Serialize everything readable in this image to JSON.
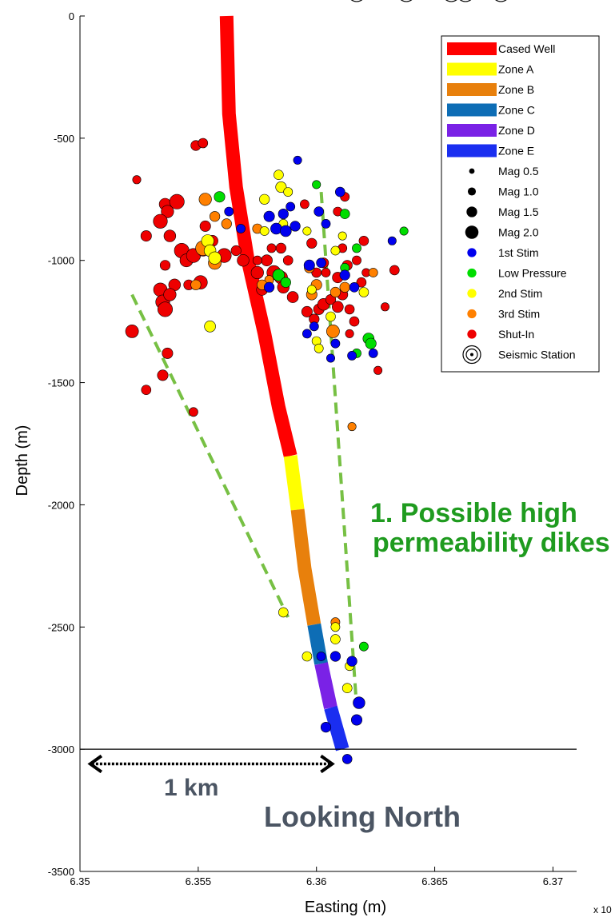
{
  "chart_data": {
    "type": "scatter",
    "xlabel": "Easting (m)",
    "ylabel": "Depth (m)",
    "x_exponent_label": "x 10",
    "xlim": [
      6.35,
      6.371
    ],
    "ylim": [
      -3500,
      0
    ],
    "x_ticks": [
      6.35,
      6.355,
      6.36,
      6.365,
      6.37
    ],
    "x_tick_labels": [
      "6.35",
      "6.355",
      "6.36",
      "6.365",
      "6.37"
    ],
    "y_ticks": [
      0,
      -500,
      -1000,
      -1500,
      -2000,
      -2500,
      -3000,
      -3500
    ],
    "y_tick_labels": [
      "0",
      "-500",
      "-1000",
      "-1500",
      "-2000",
      "-2500",
      "-3000",
      "-3500"
    ],
    "legend_position": "top-right",
    "colors": {
      "cased_well": "#ff0000",
      "zone_a": "#ffff00",
      "zone_b": "#e8800c",
      "zone_c": "#0d6db5",
      "zone_d": "#7a22e6",
      "zone_e": "#1a2ef0",
      "stim1": "#0000ee",
      "low_pressure": "#00dd00",
      "stim2": "#ffff00",
      "stim3": "#ff8000",
      "shut_in": "#ee0000",
      "dike_line": "#77c044"
    },
    "legend": [
      {
        "label": "Cased Well",
        "kind": "bar",
        "color_key": "cased_well"
      },
      {
        "label": "Zone A",
        "kind": "bar",
        "color_key": "zone_a"
      },
      {
        "label": "Zone B",
        "kind": "bar",
        "color_key": "zone_b"
      },
      {
        "label": "Zone C",
        "kind": "bar",
        "color_key": "zone_c"
      },
      {
        "label": "Zone D",
        "kind": "bar",
        "color_key": "zone_d"
      },
      {
        "label": "Zone E",
        "kind": "bar",
        "color_key": "zone_e"
      },
      {
        "label": "Mag 0.5",
        "kind": "dot",
        "mag": 0.5,
        "color": "#000000"
      },
      {
        "label": "Mag 1.0",
        "kind": "dot",
        "mag": 1.0,
        "color": "#000000"
      },
      {
        "label": "Mag 1.5",
        "kind": "dot",
        "mag": 1.5,
        "color": "#000000"
      },
      {
        "label": "Mag 2.0",
        "kind": "dot",
        "mag": 2.0,
        "color": "#000000"
      },
      {
        "label": "1st Stim",
        "kind": "dot",
        "mag": 1.2,
        "color_key": "stim1"
      },
      {
        "label": "Low Pressure",
        "kind": "dot",
        "mag": 1.2,
        "color_key": "low_pressure"
      },
      {
        "label": "2nd Stim",
        "kind": "dot",
        "mag": 1.2,
        "color_key": "stim2"
      },
      {
        "label": "3rd Stim",
        "kind": "dot",
        "mag": 1.2,
        "color_key": "stim3"
      },
      {
        "label": "Shut-In",
        "kind": "dot",
        "mag": 1.2,
        "color_key": "shut_in"
      },
      {
        "label": "Seismic Station",
        "kind": "station"
      }
    ],
    "well_segments": [
      {
        "name": "Cased Well",
        "color_key": "cased_well",
        "points": [
          [
            6.3562,
            0
          ],
          [
            6.3563,
            -400
          ],
          [
            6.3566,
            -700
          ],
          [
            6.3571,
            -1000
          ],
          [
            6.3578,
            -1300
          ],
          [
            6.3584,
            -1600
          ],
          [
            6.3589,
            -1800
          ]
        ]
      },
      {
        "name": "Zone A",
        "color_key": "zone_a",
        "points": [
          [
            6.3589,
            -1800
          ],
          [
            6.3592,
            -2020
          ]
        ]
      },
      {
        "name": "Zone B",
        "color_key": "zone_b",
        "points": [
          [
            6.3592,
            -2020
          ],
          [
            6.3595,
            -2260
          ],
          [
            6.3599,
            -2490
          ]
        ]
      },
      {
        "name": "Zone C",
        "color_key": "zone_c",
        "points": [
          [
            6.3599,
            -2490
          ],
          [
            6.3602,
            -2650
          ]
        ]
      },
      {
        "name": "Zone D",
        "color_key": "zone_d",
        "points": [
          [
            6.3602,
            -2650
          ],
          [
            6.3606,
            -2830
          ]
        ]
      },
      {
        "name": "Zone E",
        "color_key": "zone_e",
        "points": [
          [
            6.3606,
            -2830
          ],
          [
            6.3611,
            -3000
          ]
        ]
      }
    ],
    "seismic_stations": [
      {
        "x": 6.3617,
        "y": 95
      },
      {
        "x": 6.3638,
        "y": 95
      },
      {
        "x": 6.3657,
        "y": 95
      },
      {
        "x": 6.3663,
        "y": 95
      },
      {
        "x": 6.3678,
        "y": 95
      }
    ],
    "series": [
      {
        "name": "Shut-In",
        "color_key": "shut_in",
        "points": [
          [
            6.3524,
            -670,
            0.9
          ],
          [
            6.3549,
            -530,
            1.2
          ],
          [
            6.3552,
            -520,
            1.1
          ],
          [
            6.3536,
            -770,
            1.5
          ],
          [
            6.3541,
            -760,
            2.0
          ],
          [
            6.3537,
            -800,
            1.6
          ],
          [
            6.3534,
            -840,
            1.9
          ],
          [
            6.3528,
            -900,
            1.3
          ],
          [
            6.3538,
            -900,
            1.5
          ],
          [
            6.3543,
            -960,
            2.0
          ],
          [
            6.3545,
            -1000,
            1.7
          ],
          [
            6.3548,
            -980,
            1.9
          ],
          [
            6.3552,
            -960,
            1.4
          ],
          [
            6.3536,
            -1020,
            1.2
          ],
          [
            6.354,
            -1100,
            1.5
          ],
          [
            6.3546,
            -1100,
            1.2
          ],
          [
            6.3551,
            -1090,
            1.8
          ],
          [
            6.3534,
            -1120,
            1.8
          ],
          [
            6.3535,
            -1170,
            1.9
          ],
          [
            6.3536,
            -1200,
            2.0
          ],
          [
            6.3538,
            -1140,
            1.6
          ],
          [
            6.3553,
            -860,
            1.3
          ],
          [
            6.3556,
            -920,
            1.4
          ],
          [
            6.3561,
            -980,
            1.9
          ],
          [
            6.3569,
            -1000,
            1.5
          ],
          [
            6.3566,
            -960,
            1.2
          ],
          [
            6.3522,
            -1290,
            1.7
          ],
          [
            6.3537,
            -1380,
            1.3
          ],
          [
            6.3535,
            -1470,
            1.3
          ],
          [
            6.3528,
            -1530,
            1.1
          ],
          [
            6.3548,
            -1620,
            1.0
          ],
          [
            6.3579,
            -1000,
            1.4
          ],
          [
            6.3582,
            -1050,
            1.9
          ],
          [
            6.3575,
            -1050,
            1.6
          ],
          [
            6.3577,
            -1120,
            1.4
          ],
          [
            6.3585,
            -1070,
            1.7
          ],
          [
            6.3586,
            -1110,
            1.5
          ],
          [
            6.359,
            -1150,
            1.4
          ],
          [
            6.3596,
            -1210,
            1.3
          ],
          [
            6.3599,
            -1240,
            1.2
          ],
          [
            6.3601,
            -1200,
            1.3
          ],
          [
            6.3603,
            -1180,
            1.5
          ],
          [
            6.3606,
            -1160,
            1.2
          ],
          [
            6.3609,
            -1190,
            1.4
          ],
          [
            6.3611,
            -1140,
            1.3
          ],
          [
            6.3609,
            -1070,
            1.3
          ],
          [
            6.3613,
            -1020,
            1.2
          ],
          [
            6.3619,
            -1090,
            1.1
          ],
          [
            6.3611,
            -950,
            1.0
          ],
          [
            6.3616,
            -1250,
            1.1
          ],
          [
            6.3629,
            -1190,
            0.9
          ],
          [
            6.362,
            -920,
            1.1
          ],
          [
            6.3595,
            -770,
            1.0
          ],
          [
            6.3598,
            -930,
            1.2
          ],
          [
            6.3603,
            -1010,
            1.2
          ],
          [
            6.3604,
            -1050,
            1.0
          ],
          [
            6.3617,
            -1000,
            1.0
          ],
          [
            6.3621,
            -1050,
            0.9
          ],
          [
            6.3633,
            -1040,
            1.1
          ],
          [
            6.3609,
            -800,
            1.0
          ],
          [
            6.3612,
            -740,
            1.0
          ],
          [
            6.3585,
            -950,
            1.2
          ],
          [
            6.3581,
            -950,
            1.0
          ],
          [
            6.3575,
            -1000,
            1.0
          ],
          [
            6.3588,
            -1000,
            1.1
          ],
          [
            6.3614,
            -1300,
            0.9
          ],
          [
            6.36,
            -1050,
            1.1
          ],
          [
            6.3626,
            -1450,
            0.9
          ],
          [
            6.3614,
            -1200,
            1.1
          ]
        ]
      },
      {
        "name": "3rd Stim",
        "color_key": "stim3",
        "points": [
          [
            6.3552,
            -950,
            2.0
          ],
          [
            6.3557,
            -1010,
            1.7
          ],
          [
            6.3549,
            -1100,
            1.2
          ],
          [
            6.3553,
            -750,
            1.6
          ],
          [
            6.3557,
            -820,
            1.2
          ],
          [
            6.3562,
            -850,
            1.2
          ],
          [
            6.3597,
            -1030,
            1.2
          ],
          [
            6.3607,
            -1290,
            1.7
          ],
          [
            6.3598,
            -1140,
            1.3
          ],
          [
            6.36,
            -1100,
            1.3
          ],
          [
            6.3608,
            -1130,
            1.2
          ],
          [
            6.3612,
            -1110,
            1.2
          ],
          [
            6.3624,
            -1050,
            1.0
          ],
          [
            6.3608,
            -2480,
            1.0
          ],
          [
            6.3615,
            -1680,
            0.9
          ],
          [
            6.358,
            -1080,
            1.0
          ],
          [
            6.3577,
            -1100,
            1.2
          ],
          [
            6.3575,
            -870,
            1.1
          ]
        ]
      },
      {
        "name": "2nd Stim",
        "color_key": "stim2",
        "points": [
          [
            6.3554,
            -920,
            1.6
          ],
          [
            6.3555,
            -960,
            1.5
          ],
          [
            6.3557,
            -990,
            1.6
          ],
          [
            6.3555,
            -1270,
            1.4
          ],
          [
            6.3578,
            -750,
            1.2
          ],
          [
            6.3584,
            -650,
            1.1
          ],
          [
            6.3585,
            -700,
            1.3
          ],
          [
            6.3578,
            -880,
            1.0
          ],
          [
            6.3586,
            -850,
            1.0
          ],
          [
            6.3596,
            -880,
            0.9
          ],
          [
            6.3608,
            -960,
            1.0
          ],
          [
            6.3611,
            -900,
            0.9
          ],
          [
            6.362,
            -1130,
            1.1
          ],
          [
            6.3606,
            -1230,
            1.1
          ],
          [
            6.36,
            -1330,
            1.0
          ],
          [
            6.3601,
            -1360,
            1.0
          ],
          [
            6.3596,
            -2620,
            1.1
          ],
          [
            6.3608,
            -2550,
            1.1
          ],
          [
            6.3614,
            -2660,
            1.0
          ],
          [
            6.3613,
            -2750,
            1.1
          ],
          [
            6.3608,
            -2500,
            1.0
          ],
          [
            6.3586,
            -2440,
            1.1
          ],
          [
            6.3598,
            -1120,
            1.0
          ],
          [
            6.3588,
            -720,
            1.0
          ]
        ]
      },
      {
        "name": "Low Pressure",
        "color_key": "low_pressure",
        "points": [
          [
            6.3559,
            -740,
            1.3
          ],
          [
            6.3584,
            -1060,
            1.5
          ],
          [
            6.3587,
            -1090,
            1.2
          ],
          [
            6.3612,
            -810,
            1.1
          ],
          [
            6.3617,
            -950,
            1.0
          ],
          [
            6.3622,
            -1320,
            1.4
          ],
          [
            6.3623,
            -1340,
            1.3
          ],
          [
            6.3637,
            -880,
            0.9
          ],
          [
            6.36,
            -690,
            0.9
          ],
          [
            6.3617,
            -1380,
            1.0
          ],
          [
            6.362,
            -2580,
            1.0
          ],
          [
            6.3612,
            -1030,
            1.0
          ]
        ]
      },
      {
        "name": "1st Stim",
        "color_key": "stim1",
        "points": [
          [
            6.358,
            -820,
            1.3
          ],
          [
            6.3586,
            -810,
            1.2
          ],
          [
            6.3583,
            -870,
            1.4
          ],
          [
            6.3587,
            -880,
            1.4
          ],
          [
            6.3591,
            -860,
            1.2
          ],
          [
            6.3589,
            -780,
            1.0
          ],
          [
            6.3592,
            -590,
            0.9
          ],
          [
            6.3601,
            -800,
            1.1
          ],
          [
            6.3604,
            -850,
            1.0
          ],
          [
            6.3597,
            -1020,
            1.3
          ],
          [
            6.3602,
            -1010,
            1.1
          ],
          [
            6.361,
            -720,
            1.1
          ],
          [
            6.3612,
            -1060,
            1.2
          ],
          [
            6.3616,
            -1110,
            1.1
          ],
          [
            6.3608,
            -1340,
            1.0
          ],
          [
            6.3606,
            -1400,
            0.9
          ],
          [
            6.3615,
            -1390,
            1.0
          ],
          [
            6.3624,
            -1380,
            1.0
          ],
          [
            6.358,
            -1110,
            1.2
          ],
          [
            6.3596,
            -1300,
            1.0
          ],
          [
            6.3599,
            -1270,
            1.0
          ],
          [
            6.3632,
            -920,
            0.9
          ],
          [
            6.3615,
            -2640,
            1.2
          ],
          [
            6.3608,
            -2620,
            1.2
          ],
          [
            6.3602,
            -2620,
            1.0
          ],
          [
            6.3618,
            -2810,
            1.5
          ],
          [
            6.3617,
            -2880,
            1.3
          ],
          [
            6.3604,
            -2910,
            1.2
          ],
          [
            6.3613,
            -3040,
            1.1
          ],
          [
            6.3563,
            -800,
            1.0
          ],
          [
            6.3568,
            -870,
            1.0
          ]
        ]
      }
    ],
    "dike_lines": [
      {
        "from": [
          6.3522,
          -1140
        ],
        "to": [
          6.3588,
          -2460
        ]
      },
      {
        "from": [
          6.3602,
          -720
        ],
        "to": [
          6.3617,
          -2830
        ]
      }
    ],
    "depth_line": {
      "y": -3000,
      "x_from": 6.35,
      "x_to": 6.371
    },
    "scale_arrow": {
      "x_from": 6.3503,
      "x_to": 6.3608,
      "y": -3060
    }
  },
  "annotations": {
    "dikes_line1": "1. Possible high",
    "dikes_line2": "permeability dikes",
    "scale": "1 km",
    "view": "Looking North"
  }
}
